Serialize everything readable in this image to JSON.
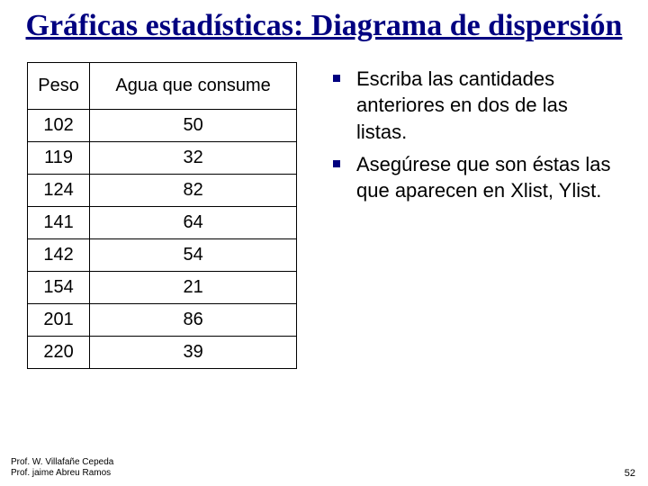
{
  "title": "Gráficas estadísticas: Diagrama de dispersión",
  "table": {
    "columns": [
      "Peso",
      "Agua que consume"
    ],
    "rows": [
      [
        "102",
        "50"
      ],
      [
        "119",
        "32"
      ],
      [
        "124",
        "82"
      ],
      [
        "141",
        "64"
      ],
      [
        "142",
        "54"
      ],
      [
        "154",
        "21"
      ],
      [
        "201",
        "86"
      ],
      [
        "220",
        "39"
      ]
    ],
    "border_color": "#000000",
    "cell_fontsize": 20,
    "header_fontsize": 20
  },
  "bullets": [
    "Escriba las cantidades anteriores en dos de las listas.",
    "Asegúrese que son éstas las que aparecen en Xlist, Ylist."
  ],
  "bullet_color": "#000080",
  "title_color": "#000080",
  "footer": {
    "line1": "Prof. W. Villafañe Cepeda",
    "line2": "Prof. jaime Abreu Ramos"
  },
  "page_number": "52",
  "background_color": "#ffffff"
}
